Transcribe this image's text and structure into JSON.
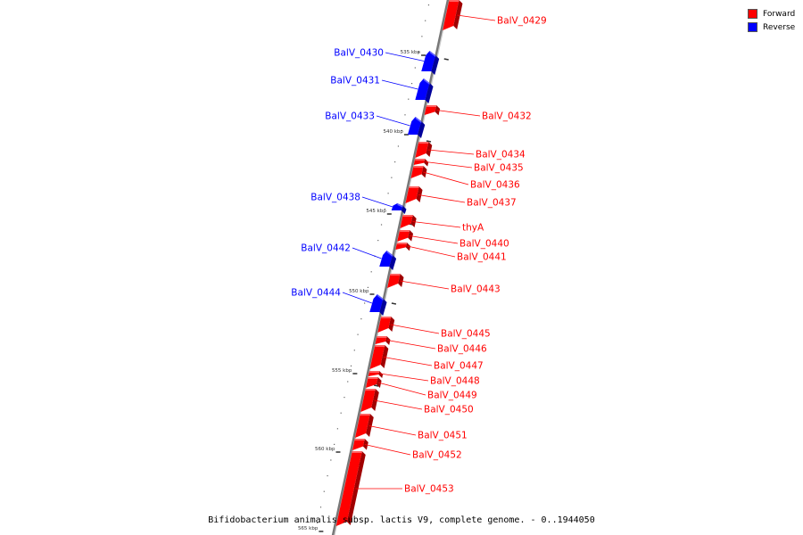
{
  "legend": {
    "forward_label": "Forward",
    "reverse_label": "Reverse",
    "forward_color": "#ff0000",
    "reverse_color": "#0000ff"
  },
  "caption": "Bifidobacterium animalis subsp. lactis V9, complete genome. - 0..1944050",
  "ticks": [
    "535 kbp",
    "540 kbp",
    "545 kbp",
    "550 kbp",
    "555 kbp",
    "560 kbp",
    "565 kbp"
  ],
  "genes": [
    {
      "name": "BalV_0429",
      "strand": "forward"
    },
    {
      "name": "BalV_0430",
      "strand": "reverse"
    },
    {
      "name": "BalV_0431",
      "strand": "reverse"
    },
    {
      "name": "BalV_0432",
      "strand": "forward"
    },
    {
      "name": "BalV_0433",
      "strand": "reverse"
    },
    {
      "name": "BalV_0434",
      "strand": "forward"
    },
    {
      "name": "BalV_0435",
      "strand": "forward"
    },
    {
      "name": "BalV_0436",
      "strand": "forward"
    },
    {
      "name": "BalV_0437",
      "strand": "forward"
    },
    {
      "name": "BalV_0438",
      "strand": "reverse"
    },
    {
      "name": "thyA",
      "strand": "forward"
    },
    {
      "name": "BalV_0440",
      "strand": "forward"
    },
    {
      "name": "BalV_0441",
      "strand": "forward"
    },
    {
      "name": "BalV_0442",
      "strand": "reverse"
    },
    {
      "name": "BalV_0443",
      "strand": "forward"
    },
    {
      "name": "BalV_0444",
      "strand": "reverse"
    },
    {
      "name": "BalV_0445",
      "strand": "forward"
    },
    {
      "name": "BalV_0446",
      "strand": "forward"
    },
    {
      "name": "BalV_0447",
      "strand": "forward"
    },
    {
      "name": "BalV_0448",
      "strand": "forward"
    },
    {
      "name": "BalV_0449",
      "strand": "forward"
    },
    {
      "name": "BalV_0450",
      "strand": "forward"
    },
    {
      "name": "BalV_0451",
      "strand": "forward"
    },
    {
      "name": "BalV_0452",
      "strand": "forward"
    },
    {
      "name": "BalV_0453",
      "strand": "forward"
    }
  ]
}
